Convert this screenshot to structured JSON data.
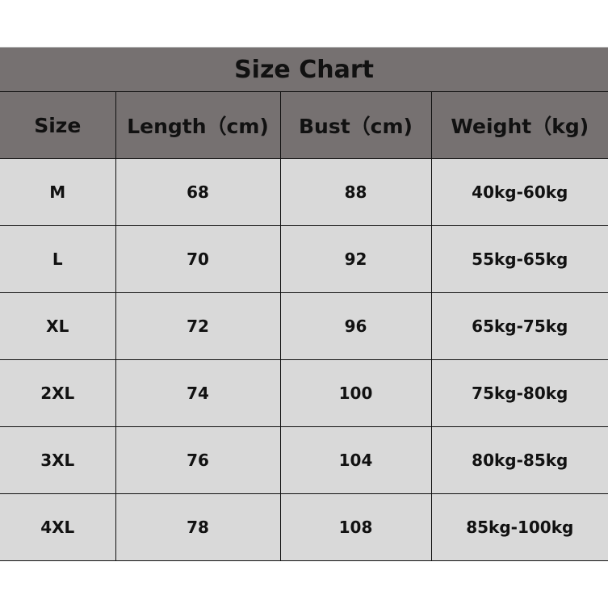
{
  "title": "Size Chart",
  "headers": [
    "Size",
    "Length（cm)",
    "Bust（cm)",
    "Weight（kg)"
  ],
  "rows": [
    [
      "M",
      "68",
      "88",
      "40kg-60kg"
    ],
    [
      "L",
      "70",
      "92",
      "55kg-65kg"
    ],
    [
      "XL",
      "72",
      "96",
      "65kg-75kg"
    ],
    [
      "2XL",
      "74",
      "100",
      "75kg-80kg"
    ],
    [
      "3XL",
      "76",
      "104",
      "80kg-85kg"
    ],
    [
      "4XL",
      "78",
      "108",
      "85kg-100kg"
    ]
  ],
  "colors": {
    "header_bg": "#767171",
    "body_bg": "#d9d9d9"
  }
}
